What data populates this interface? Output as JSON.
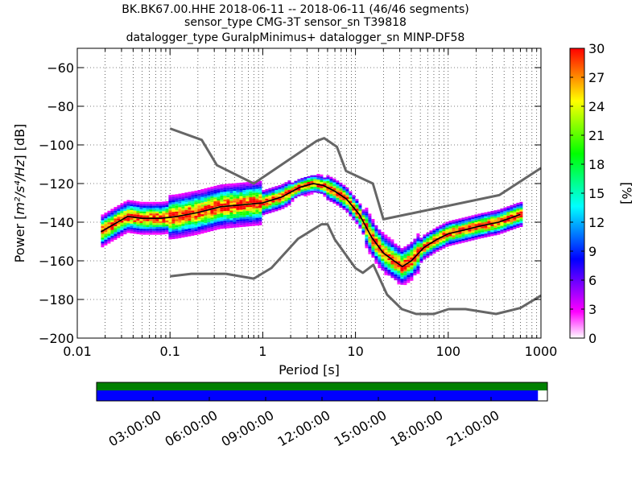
{
  "title": {
    "line1": "BK.BK67.00.HHE   2018-06-11 -- 2018-06-11  (46/46 segments)",
    "line2": "sensor_type CMG-3T sensor_sn T39818",
    "line3": "datalogger_type GuralpMinimus+ datalogger_sn MINP-DF58"
  },
  "chart_data": {
    "type": "heatmap",
    "xlabel": "Period [s]",
    "ylabel_prefix": "Power [",
    "ylabel_unit": "m²/s⁴/Hz",
    "ylabel_suffix": "] [dB]",
    "xscale": "log",
    "xlim": [
      0.01,
      1000
    ],
    "ylim": [
      -200,
      -50
    ],
    "grid": "dotted",
    "x_ticks": [
      0.01,
      0.1,
      1,
      10,
      100,
      1000
    ],
    "x_tick_labels": [
      "0.01",
      "0.1",
      "1",
      "10",
      "100",
      "1000"
    ],
    "y_ticks": [
      -200,
      -180,
      -160,
      -140,
      -120,
      -100,
      -80,
      -60
    ],
    "y_tick_labels": [
      "−200",
      "−180",
      "−160",
      "−140",
      "−120",
      "−100",
      "−80",
      "−60"
    ],
    "colorbar": {
      "label": "[%]",
      "range": [
        0,
        30
      ],
      "ticks": [
        0,
        3,
        6,
        9,
        12,
        15,
        18,
        21,
        24,
        27,
        30
      ],
      "tick_labels": [
        "0",
        "3",
        "6",
        "9",
        "12",
        "15",
        "18",
        "21",
        "24",
        "27",
        "30"
      ],
      "colors": [
        "#ffffff",
        "#ff00ff",
        "#8000ff",
        "#0000ff",
        "#0080ff",
        "#00ffff",
        "#00ff80",
        "#00ff00",
        "#80ff00",
        "#ffff00",
        "#ff8000",
        "#ff0000"
      ]
    },
    "noise_models": [
      {
        "name": "high",
        "period": [
          0.1,
          0.22,
          0.32,
          0.8,
          3.8,
          4.6,
          6.3,
          7.9,
          15.4,
          20,
          354.8,
          1000
        ],
        "power": [
          -91.5,
          -97.4,
          -110.5,
          -120.0,
          -98.0,
          -96.5,
          -101.0,
          -113.5,
          -120.0,
          -138.5,
          -126.0,
          -112.0
        ]
      },
      {
        "name": "low",
        "period": [
          0.1,
          0.17,
          0.4,
          0.8,
          1.24,
          2.4,
          4.3,
          5,
          6,
          10,
          12,
          15.6,
          21.9,
          31.6,
          45,
          70,
          101,
          154,
          328,
          600,
          1000
        ],
        "power": [
          -168.0,
          -166.7,
          -166.7,
          -169.2,
          -163.7,
          -148.6,
          -141.1,
          -141.1,
          -149.0,
          -163.8,
          -166.2,
          -162.1,
          -177.5,
          -185.0,
          -187.5,
          -187.5,
          -185.0,
          -185.0,
          -187.5,
          -184.4,
          -178.0
        ]
      }
    ],
    "median": {
      "period": [
        0.018,
        0.025,
        0.035,
        0.05,
        0.08,
        0.12,
        0.2,
        0.35,
        0.6,
        1,
        1.6,
        2.5,
        3.5,
        4.5,
        6,
        8,
        11,
        15,
        20,
        26,
        32,
        40,
        55,
        75,
        100,
        150,
        220,
        350,
        600
      ],
      "power": [
        -145,
        -141,
        -137,
        -138,
        -138,
        -137,
        -135,
        -132,
        -131,
        -130,
        -127,
        -122,
        -120,
        -121,
        -124,
        -128,
        -136,
        -148,
        -156,
        -160,
        -163,
        -160,
        -153,
        -149,
        -146,
        -144,
        -142,
        -140,
        -136
      ]
    },
    "timeline": {
      "tick_labels": [
        "03:00:00",
        "06:00:00",
        "09:00:00",
        "12:00:00",
        "15:00:00",
        "18:00:00",
        "21:00:00"
      ],
      "data_coverage_fraction": 1.0,
      "psd_coverage_fraction": 0.979,
      "data_color": "#008000",
      "psd_color": "#0000ff"
    }
  }
}
